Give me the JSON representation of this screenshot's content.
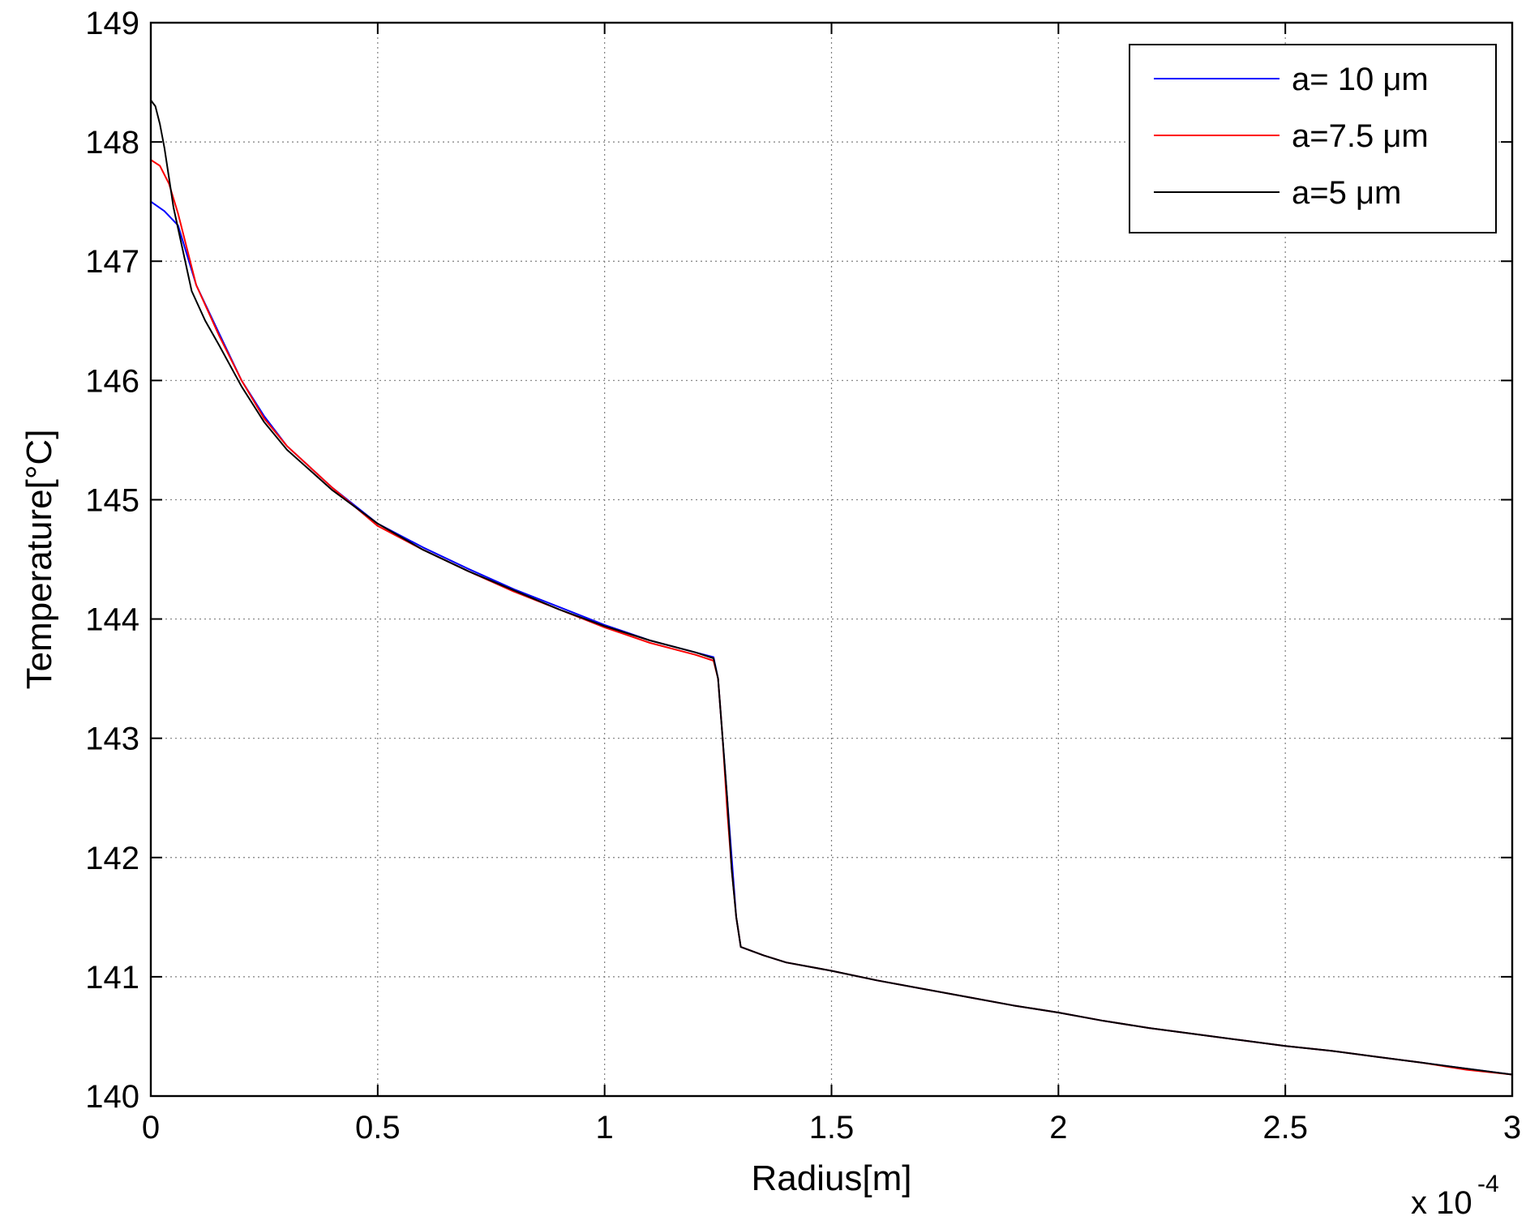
{
  "chart_data": {
    "type": "line",
    "title": "",
    "xlabel": "Radius[m]",
    "ylabel": "Temperature[°C]",
    "x_scale_note": "x 10",
    "x_scale_exponent": "-4",
    "xlim": [
      0,
      3
    ],
    "ylim": [
      140,
      149
    ],
    "x_ticks": [
      0,
      0.5,
      1,
      1.5,
      2,
      2.5,
      3
    ],
    "x_tick_labels": [
      "0",
      "0.5",
      "1",
      "1.5",
      "2",
      "2.5",
      "3"
    ],
    "y_ticks": [
      140,
      141,
      142,
      143,
      144,
      145,
      146,
      147,
      148,
      149
    ],
    "y_tick_labels": [
      "140",
      "141",
      "142",
      "143",
      "144",
      "145",
      "146",
      "147",
      "148",
      "149"
    ],
    "grid": true,
    "legend_position": "top-right",
    "series": [
      {
        "name": "a= 10 μm",
        "color": "#0000ff",
        "x": [
          0,
          0.03,
          0.06,
          0.08,
          0.1,
          0.15,
          0.2,
          0.25,
          0.3,
          0.4,
          0.5,
          0.6,
          0.7,
          0.8,
          0.9,
          1.0,
          1.1,
          1.2,
          1.24,
          1.25,
          1.26,
          1.27,
          1.28,
          1.29,
          1.3,
          1.35,
          1.4,
          1.5,
          1.6,
          1.7,
          1.8,
          1.9,
          2.0,
          2.1,
          2.2,
          2.3,
          2.4,
          2.5,
          2.6,
          2.7,
          2.8,
          2.9,
          3.0
        ],
        "y": [
          147.5,
          147.42,
          147.3,
          147.05,
          146.8,
          146.4,
          146.0,
          145.7,
          145.45,
          145.1,
          144.8,
          144.6,
          144.42,
          144.25,
          144.1,
          143.95,
          143.82,
          143.72,
          143.68,
          143.5,
          143.0,
          142.5,
          142.0,
          141.5,
          141.25,
          141.18,
          141.12,
          141.05,
          140.97,
          140.9,
          140.83,
          140.76,
          140.7,
          140.63,
          140.57,
          140.52,
          140.47,
          140.42,
          140.38,
          140.33,
          140.28,
          140.23,
          140.18
        ]
      },
      {
        "name": "a=7.5 μm",
        "color": "#ff0000",
        "x": [
          0,
          0.02,
          0.04,
          0.06,
          0.08,
          0.1,
          0.15,
          0.2,
          0.25,
          0.3,
          0.4,
          0.5,
          0.6,
          0.7,
          0.8,
          0.9,
          1.0,
          1.1,
          1.2,
          1.24,
          1.25,
          1.26,
          1.27,
          1.28,
          1.29,
          1.3,
          1.35,
          1.4,
          1.5,
          1.6,
          1.7,
          1.8,
          1.9,
          2.0,
          2.1,
          2.2,
          2.3,
          2.4,
          2.5,
          2.6,
          2.7,
          2.8,
          2.9,
          3.0
        ],
        "y": [
          147.85,
          147.8,
          147.65,
          147.4,
          147.1,
          146.8,
          146.38,
          146.0,
          145.68,
          145.45,
          145.1,
          144.78,
          144.58,
          144.4,
          144.23,
          144.08,
          143.93,
          143.8,
          143.7,
          143.65,
          143.5,
          143.0,
          142.4,
          141.9,
          141.5,
          141.25,
          141.18,
          141.12,
          141.05,
          140.97,
          140.9,
          140.83,
          140.76,
          140.7,
          140.63,
          140.57,
          140.52,
          140.47,
          140.42,
          140.38,
          140.33,
          140.28,
          140.22,
          140.18
        ]
      },
      {
        "name": "a=5 μm",
        "color": "#000000",
        "x": [
          0,
          0.01,
          0.02,
          0.03,
          0.04,
          0.05,
          0.07,
          0.09,
          0.12,
          0.15,
          0.2,
          0.25,
          0.3,
          0.4,
          0.5,
          0.6,
          0.7,
          0.8,
          0.9,
          1.0,
          1.1,
          1.2,
          1.24,
          1.25,
          1.26,
          1.27,
          1.28,
          1.29,
          1.3,
          1.35,
          1.4,
          1.5,
          1.6,
          1.7,
          1.8,
          1.9,
          2.0,
          2.1,
          2.2,
          2.3,
          2.4,
          2.5,
          2.6,
          2.7,
          2.8,
          2.9,
          3.0
        ],
        "y": [
          148.35,
          148.3,
          148.15,
          147.95,
          147.7,
          147.45,
          147.1,
          146.75,
          146.5,
          146.3,
          145.95,
          145.65,
          145.42,
          145.08,
          144.8,
          144.58,
          144.4,
          144.24,
          144.08,
          143.94,
          143.82,
          143.72,
          143.67,
          143.5,
          143.0,
          142.5,
          141.9,
          141.5,
          141.25,
          141.18,
          141.12,
          141.05,
          140.97,
          140.9,
          140.83,
          140.76,
          140.7,
          140.63,
          140.57,
          140.52,
          140.47,
          140.42,
          140.38,
          140.33,
          140.28,
          140.23,
          140.18
        ]
      }
    ]
  }
}
